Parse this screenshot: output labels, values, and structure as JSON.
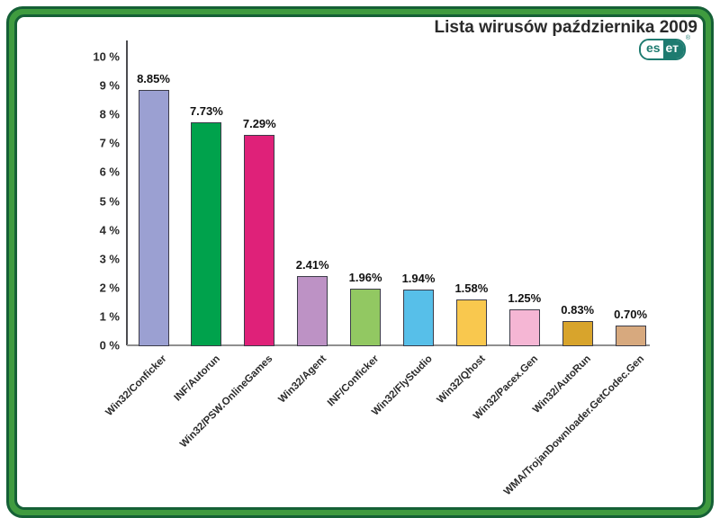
{
  "header": {
    "title": "Lista wirusów października 2009",
    "logo": {
      "brand": "eset",
      "left": "es",
      "right": "ет",
      "trademark": "®"
    }
  },
  "colors": {
    "frame_dark_green": "#156036",
    "frame_light_green": "#3f9b3f",
    "eset_teal": "#1e7b70",
    "title_text": "#2a2a2a",
    "y_axis_line": "#4c4c50",
    "x_axis_line": "#8f8f8f",
    "bar_border": "#3c3c49"
  },
  "chart_data": {
    "type": "bar",
    "title": "Lista wirusów października 2009",
    "xlabel": "",
    "ylabel": "",
    "ylim": [
      0,
      10
    ],
    "grid": false,
    "legend": null,
    "yticks": [
      0,
      1,
      2,
      3,
      4,
      5,
      6,
      7,
      8,
      9,
      10
    ],
    "ytick_labels": [
      "0 %",
      "1 %",
      "2 %",
      "3 %",
      "4 %",
      "5 %",
      "6 %",
      "7 %",
      "8 %",
      "9 %",
      "10 %"
    ],
    "categories": [
      "Win32/Conficker",
      "INF/Autorun",
      "Win32/PSW.OnlineGames",
      "Win32/Agent",
      "INF/Conficker",
      "Win32/FlyStudio",
      "Win32/Qhost",
      "Win32/Pacex.Gen",
      "Win32/AutoRun",
      "WMA/TrojanDownloader.GetCodec.Gen"
    ],
    "values": [
      8.85,
      7.73,
      7.29,
      2.41,
      1.96,
      1.94,
      1.58,
      1.25,
      0.83,
      0.7
    ],
    "value_labels": [
      "8.85%",
      "7.73%",
      "7.29%",
      "2.41%",
      "1.96%",
      "1.94%",
      "1.58%",
      "1.25%",
      "0.83%",
      "0.70%"
    ],
    "bar_colors": [
      "#9ba0d2",
      "#00a24c",
      "#df2179",
      "#bd92c5",
      "#92c862",
      "#57bfe9",
      "#f9c84e",
      "#f5b6d4",
      "#d8a42c",
      "#d7a97e"
    ]
  }
}
